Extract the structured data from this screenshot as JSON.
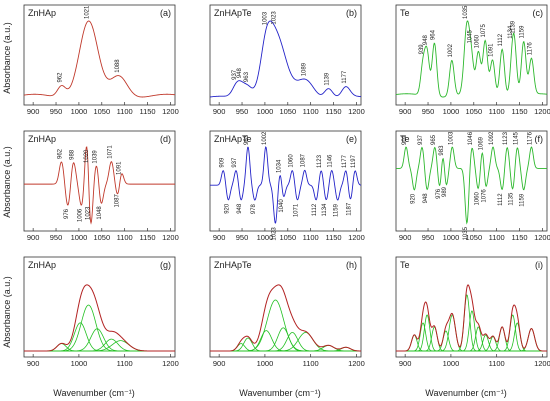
{
  "figure": {
    "ylabel": "Absorbance (a.u.)",
    "xlabel": "Wavenumber (cm⁻¹)"
  },
  "colors": {
    "zn": "#c0392b",
    "te_doped": "#2323c8",
    "te": "#2db82d",
    "fit_total": "#b22222",
    "fit_component": "#22c022"
  },
  "chart_data": [
    {
      "type": "line",
      "panel": "a",
      "title": "ZnHAp",
      "letter": "(a)",
      "row": 0,
      "col": 0,
      "color_key": "zn",
      "xlim": [
        880,
        1210
      ],
      "xticks": [
        900,
        950,
        1000,
        1050,
        1100,
        1150,
        1200
      ],
      "peaks": [
        {
          "x": 962,
          "label": "962"
        },
        {
          "x": 1021,
          "label": "1021"
        },
        {
          "x": 1088,
          "label": "1088"
        }
      ]
    },
    {
      "type": "line",
      "panel": "b",
      "title": "ZnHApTe",
      "letter": "(b)",
      "row": 0,
      "col": 1,
      "color_key": "te_doped",
      "xlim": [
        880,
        1210
      ],
      "xticks": [
        900,
        950,
        1000,
        1050,
        1100,
        1150,
        1200
      ],
      "peaks": [
        {
          "x": 937,
          "label": "937"
        },
        {
          "x": 948,
          "label": "948"
        },
        {
          "x": 963,
          "label": "963"
        },
        {
          "x": 1003,
          "label": "1003"
        },
        {
          "x": 1023,
          "label": "1023"
        },
        {
          "x": 1089,
          "label": "1089"
        },
        {
          "x": 1139,
          "label": "1139"
        },
        {
          "x": 1177,
          "label": "1177"
        }
      ]
    },
    {
      "type": "line",
      "panel": "c",
      "title": "Te",
      "letter": "(c)",
      "row": 0,
      "col": 2,
      "color_key": "te",
      "xlim": [
        880,
        1210
      ],
      "xticks": [
        900,
        950,
        1000,
        1050,
        1100,
        1150,
        1200
      ],
      "peaks": [
        {
          "x": 939,
          "label": "939"
        },
        {
          "x": 948,
          "label": "948"
        },
        {
          "x": 964,
          "label": "964"
        },
        {
          "x": 1002,
          "label": "1002"
        },
        {
          "x": 1035,
          "label": "1035"
        },
        {
          "x": 1045,
          "label": "1045"
        },
        {
          "x": 1060,
          "label": "1060"
        },
        {
          "x": 1075,
          "label": "1075"
        },
        {
          "x": 1091,
          "label": "1091"
        },
        {
          "x": 1112,
          "label": "1112"
        },
        {
          "x": 1134,
          "label": "1134"
        },
        {
          "x": 1139,
          "label": "1139"
        },
        {
          "x": 1159,
          "label": "1159"
        },
        {
          "x": 1176,
          "label": "1176"
        }
      ]
    },
    {
      "type": "line",
      "panel": "d",
      "title": "ZnHAp",
      "letter": "(d)",
      "row": 1,
      "col": 0,
      "color_key": "zn",
      "xlim": [
        880,
        1210
      ],
      "xticks": [
        900,
        950,
        1000,
        1050,
        1100,
        1150,
        1200
      ],
      "peaks": [
        {
          "x": 962,
          "label": "962"
        },
        {
          "x": 976,
          "label": "976"
        },
        {
          "x": 988,
          "label": "988"
        },
        {
          "x": 1006,
          "label": "1006"
        },
        {
          "x": 1020,
          "label": "1020"
        },
        {
          "x": 1023,
          "label": "1023"
        },
        {
          "x": 1039,
          "label": "1039"
        },
        {
          "x": 1048,
          "label": "1048"
        },
        {
          "x": 1071,
          "label": "1071"
        },
        {
          "x": 1087,
          "label": "1087"
        },
        {
          "x": 1091,
          "label": "1091"
        }
      ]
    },
    {
      "type": "line",
      "panel": "e",
      "title": "ZnHApTe",
      "letter": "(e)",
      "row": 1,
      "col": 1,
      "color_key": "te_doped",
      "xlim": [
        880,
        1210
      ],
      "xticks": [
        900,
        950,
        1000,
        1050,
        1100,
        1150,
        1200
      ],
      "peaks": [
        {
          "x": 909,
          "label": "909"
        },
        {
          "x": 920,
          "label": "920"
        },
        {
          "x": 937,
          "label": "937"
        },
        {
          "x": 948,
          "label": "948"
        },
        {
          "x": 963,
          "label": "963"
        },
        {
          "x": 978,
          "label": "978"
        },
        {
          "x": 1002,
          "label": "1002"
        },
        {
          "x": 1023,
          "label": "1023"
        },
        {
          "x": 1034,
          "label": "1034"
        },
        {
          "x": 1040,
          "label": "1040"
        },
        {
          "x": 1060,
          "label": "1060"
        },
        {
          "x": 1071,
          "label": "1071"
        },
        {
          "x": 1087,
          "label": "1087"
        },
        {
          "x": 1112,
          "label": "1112"
        },
        {
          "x": 1123,
          "label": "1123"
        },
        {
          "x": 1134,
          "label": "1134"
        },
        {
          "x": 1146,
          "label": "1146"
        },
        {
          "x": 1159,
          "label": "1159"
        },
        {
          "x": 1177,
          "label": "1177"
        },
        {
          "x": 1187,
          "label": "1187"
        },
        {
          "x": 1197,
          "label": "1197"
        }
      ]
    },
    {
      "type": "line",
      "panel": "f",
      "title": "Te",
      "letter": "(f)",
      "row": 1,
      "col": 2,
      "color_key": "te",
      "xlim": [
        880,
        1210
      ],
      "xticks": [
        900,
        950,
        1000,
        1050,
        1100,
        1150,
        1200
      ],
      "peaks": [
        {
          "x": 902,
          "label": "902"
        },
        {
          "x": 920,
          "label": "920"
        },
        {
          "x": 937,
          "label": "937"
        },
        {
          "x": 948,
          "label": "948"
        },
        {
          "x": 965,
          "label": "965"
        },
        {
          "x": 976,
          "label": "976"
        },
        {
          "x": 983,
          "label": "983"
        },
        {
          "x": 989,
          "label": "989"
        },
        {
          "x": 1003,
          "label": "1003"
        },
        {
          "x": 1035,
          "label": "1035"
        },
        {
          "x": 1046,
          "label": "1046"
        },
        {
          "x": 1060,
          "label": "1060"
        },
        {
          "x": 1069,
          "label": "1069"
        },
        {
          "x": 1076,
          "label": "1076"
        },
        {
          "x": 1092,
          "label": "1092"
        },
        {
          "x": 1112,
          "label": "1112"
        },
        {
          "x": 1123,
          "label": "1123"
        },
        {
          "x": 1135,
          "label": "1135"
        },
        {
          "x": 1145,
          "label": "1145"
        },
        {
          "x": 1159,
          "label": "1159"
        },
        {
          "x": 1176,
          "label": "1176"
        }
      ]
    },
    {
      "type": "line",
      "panel": "g",
      "title": "ZnHAp",
      "letter": "(g)",
      "row": 2,
      "col": 0,
      "color_key": "fit_total",
      "component_color_key": "fit_component",
      "xlim": [
        880,
        1210
      ],
      "xticks": [
        900,
        1000,
        1100,
        1200
      ],
      "components": [
        {
          "center": 962,
          "height": 0.1,
          "width": 10
        },
        {
          "center": 1003,
          "height": 0.38,
          "width": 13
        },
        {
          "center": 1021,
          "height": 0.62,
          "width": 16
        },
        {
          "center": 1040,
          "height": 0.3,
          "width": 14
        },
        {
          "center": 1071,
          "height": 0.16,
          "width": 14
        },
        {
          "center": 1091,
          "height": 0.14,
          "width": 18
        }
      ]
    },
    {
      "type": "line",
      "panel": "h",
      "title": "ZnHApTe",
      "letter": "(h)",
      "row": 2,
      "col": 1,
      "color_key": "fit_total",
      "component_color_key": "fit_component",
      "xlim": [
        880,
        1210
      ],
      "xticks": [
        900,
        1000,
        1100,
        1200
      ],
      "components": [
        {
          "center": 948,
          "height": 0.08,
          "width": 8
        },
        {
          "center": 963,
          "height": 0.14,
          "width": 9
        },
        {
          "center": 1003,
          "height": 0.22,
          "width": 12
        },
        {
          "center": 1023,
          "height": 0.55,
          "width": 18
        },
        {
          "center": 1040,
          "height": 0.25,
          "width": 12
        },
        {
          "center": 1060,
          "height": 0.2,
          "width": 12
        },
        {
          "center": 1089,
          "height": 0.2,
          "width": 16
        },
        {
          "center": 1139,
          "height": 0.06,
          "width": 12
        },
        {
          "center": 1177,
          "height": 0.04,
          "width": 10
        }
      ]
    },
    {
      "type": "line",
      "panel": "i",
      "title": "Te",
      "letter": "(i)",
      "row": 2,
      "col": 2,
      "color_key": "fit_total",
      "component_color_key": "fit_component",
      "xlim": [
        880,
        1210
      ],
      "xticks": [
        900,
        1000,
        1100,
        1200
      ],
      "components": [
        {
          "center": 920,
          "height": 0.2,
          "width": 6
        },
        {
          "center": 939,
          "height": 0.35,
          "width": 6
        },
        {
          "center": 948,
          "height": 0.45,
          "width": 6
        },
        {
          "center": 964,
          "height": 0.3,
          "width": 6
        },
        {
          "center": 989,
          "height": 0.25,
          "width": 6
        },
        {
          "center": 1003,
          "height": 0.45,
          "width": 7
        },
        {
          "center": 1035,
          "height": 0.7,
          "width": 6
        },
        {
          "center": 1046,
          "height": 0.5,
          "width": 6
        },
        {
          "center": 1060,
          "height": 0.3,
          "width": 6
        },
        {
          "center": 1076,
          "height": 0.2,
          "width": 6
        },
        {
          "center": 1092,
          "height": 0.18,
          "width": 6
        },
        {
          "center": 1112,
          "height": 0.3,
          "width": 6
        },
        {
          "center": 1135,
          "height": 0.45,
          "width": 6
        },
        {
          "center": 1145,
          "height": 0.35,
          "width": 6
        },
        {
          "center": 1176,
          "height": 0.28,
          "width": 7
        }
      ]
    }
  ]
}
